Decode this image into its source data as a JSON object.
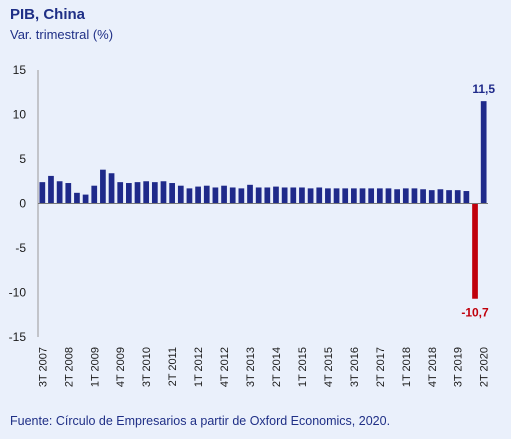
{
  "chart_data": {
    "type": "bar",
    "title": "PIB, China",
    "subtitle": "Var. trimestral (%)",
    "source": "Fuente: Círculo de Empresarios a partir de Oxford Economics, 2020.",
    "ylim": [
      -15,
      15
    ],
    "yticks": [
      15,
      10,
      5,
      0,
      -5,
      -10,
      -15
    ],
    "grid": false,
    "colors": {
      "positive": "#1f2a8a",
      "negative": "#c0000b"
    },
    "tick_labels": [
      "3T 2007",
      "2T 2008",
      "1T 2009",
      "4T 2009",
      "3T 2010",
      "2T 2011",
      "1T 2012",
      "4T 2012",
      "3T 2013",
      "2T 2014",
      "1T 2015",
      "4T 2015",
      "3T 2016",
      "2T 2017",
      "1T 2018",
      "4T 2018",
      "3T 2019",
      "2T 2020"
    ],
    "values": [
      2.4,
      3.1,
      2.5,
      2.3,
      1.2,
      1.0,
      2.0,
      3.8,
      3.4,
      2.4,
      2.3,
      2.4,
      2.5,
      2.4,
      2.5,
      2.3,
      2.0,
      1.7,
      1.9,
      2.0,
      1.8,
      2.0,
      1.8,
      1.7,
      2.1,
      1.8,
      1.8,
      1.9,
      1.8,
      1.8,
      1.8,
      1.7,
      1.8,
      1.7,
      1.7,
      1.7,
      1.7,
      1.7,
      1.7,
      1.7,
      1.7,
      1.6,
      1.7,
      1.7,
      1.6,
      1.5,
      1.6,
      1.5,
      1.5,
      1.4,
      -10.7,
      11.5
    ],
    "data_labels": [
      {
        "index": 50,
        "text": "-10,7"
      },
      {
        "index": 51,
        "text": "11,5"
      }
    ]
  }
}
